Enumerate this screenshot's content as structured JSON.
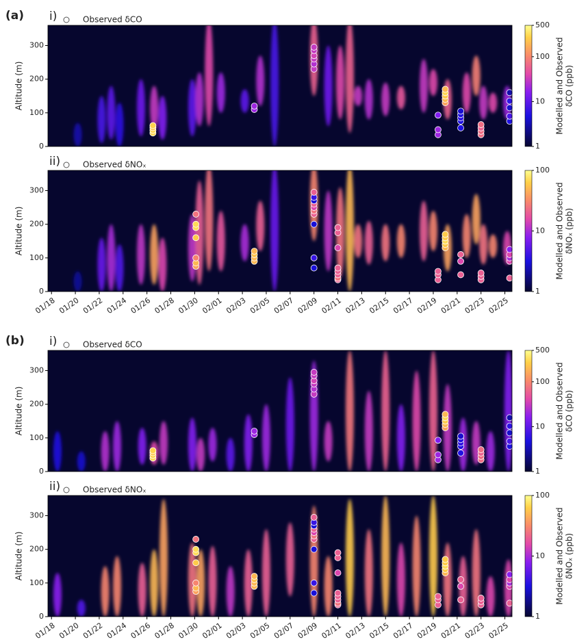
{
  "chart_data": [
    {
      "type": "heatmap",
      "panel_label": "(a)",
      "subpanel": "i)",
      "ylabel": "Altitude (m)",
      "colorbar_label": [
        "Modelled and Observed",
        "δCO (ppb)"
      ],
      "log": true,
      "clim": [
        1,
        500
      ],
      "cticks": [
        1,
        10,
        100,
        500
      ],
      "xlim": [
        17.7,
        56.6
      ],
      "ylim": [
        0,
        360
      ],
      "yticks": [
        0,
        100,
        200,
        300
      ],
      "model": {
        "x": [
          20.2,
          22.2,
          23.0,
          23.7,
          25.5,
          26.6,
          27.3,
          29.8,
          30.4,
          31.2,
          32.2,
          34.2,
          35.5,
          36.7,
          40,
          41.2,
          42.2,
          43,
          43.7,
          44.6,
          46.0,
          47.3,
          49.2,
          50.0,
          51.2,
          52.8,
          53.6,
          54.2,
          55.0,
          56.2
        ],
        "base": [
          0,
          10,
          20,
          0,
          30,
          50,
          20,
          30,
          60,
          60,
          100,
          100,
          120,
          0,
          150,
          60,
          80,
          40,
          120,
          80,
          90,
          110,
          100,
          150,
          80,
          100,
          150,
          80,
          100,
          80
        ],
        "top": [
          70,
          150,
          180,
          130,
          200,
          180,
          150,
          200,
          220,
          380,
          220,
          170,
          270,
          380,
          380,
          300,
          300,
          380,
          180,
          200,
          190,
          180,
          260,
          230,
          200,
          220,
          270,
          180,
          160,
          180
        ],
        "values": [
          3,
          8,
          10,
          6,
          12,
          30,
          15,
          10,
          25,
          40,
          20,
          10,
          25,
          8,
          60,
          12,
          40,
          60,
          30,
          25,
          30,
          50,
          30,
          40,
          60,
          40,
          90,
          30,
          40,
          20
        ]
      },
      "observations": {
        "name": "Observed δCO",
        "x": [
          26.5,
          26.5,
          26.5,
          26.5,
          35,
          35,
          40,
          40,
          40,
          40,
          40,
          40,
          50.4,
          50.4,
          50.4,
          51,
          51,
          51,
          51,
          51,
          52.3,
          52.3,
          52.3,
          52.3,
          52.3,
          54,
          54,
          54,
          54,
          56.4,
          56.4,
          56.4,
          56.4,
          56.4
        ],
        "y": [
          40,
          48,
          56,
          62,
          110,
          120,
          230,
          245,
          260,
          270,
          285,
          295,
          35,
          50,
          93,
          130,
          140,
          150,
          160,
          170,
          55,
          75,
          85,
          95,
          105,
          35,
          45,
          55,
          65,
          75,
          90,
          115,
          135,
          160
        ],
        "values": [
          300,
          300,
          250,
          280,
          20,
          20,
          30,
          25,
          30,
          35,
          30,
          30,
          20,
          20,
          15,
          150,
          200,
          250,
          300,
          200,
          5,
          5,
          6,
          5,
          4,
          70,
          70,
          60,
          70,
          5,
          8,
          4,
          6,
          3
        ]
      }
    },
    {
      "type": "heatmap",
      "subpanel": "ii)",
      "ylabel": "Altitude (m)",
      "colorbar_label": [
        "Modelled and Observed",
        "δNOₓ (ppb)"
      ],
      "log": true,
      "clim": [
        1,
        100
      ],
      "cticks": [
        1,
        10,
        100
      ],
      "xlim": [
        17.7,
        56.6
      ],
      "ylim": [
        0,
        360
      ],
      "yticks": [
        0,
        100,
        200,
        300
      ],
      "xticks": [
        {
          "value": 18,
          "label": "01/18"
        },
        {
          "value": 20,
          "label": "01/20"
        },
        {
          "value": 22,
          "label": "01/22"
        },
        {
          "value": 24,
          "label": "01/24"
        },
        {
          "value": 26,
          "label": "01/26"
        },
        {
          "value": 28,
          "label": "01/28"
        },
        {
          "value": 30,
          "label": "01/30"
        },
        {
          "value": 32,
          "label": "02/01"
        },
        {
          "value": 34,
          "label": "02/03"
        },
        {
          "value": 36,
          "label": "02/05"
        },
        {
          "value": 38,
          "label": "02/07"
        },
        {
          "value": 40,
          "label": "02/09"
        },
        {
          "value": 42,
          "label": "02/11"
        },
        {
          "value": 44,
          "label": "02/13"
        },
        {
          "value": 46,
          "label": "02/15"
        },
        {
          "value": 48,
          "label": "02/17"
        },
        {
          "value": 50,
          "label": "02/19"
        },
        {
          "value": 52,
          "label": "02/21"
        },
        {
          "value": 54,
          "label": "02/23"
        },
        {
          "value": 56,
          "label": "02/25"
        }
      ],
      "model": {
        "x": [
          20.2,
          22.2,
          23.0,
          23.7,
          25.5,
          26.6,
          27.3,
          29.8,
          30.4,
          31.2,
          32.2,
          34.2,
          35.5,
          36.7,
          40,
          41.2,
          42.2,
          43,
          43.7,
          44.6,
          46.0,
          47.3,
          49.2,
          50.0,
          51.2,
          52.8,
          53.6,
          54.2,
          55.0,
          56.2
        ],
        "base": [
          0,
          0,
          0,
          0,
          20,
          20,
          0,
          30,
          20,
          60,
          60,
          90,
          120,
          0,
          150,
          60,
          40,
          0,
          100,
          80,
          90,
          100,
          90,
          120,
          60,
          100,
          140,
          80,
          100,
          80
        ],
        "top": [
          60,
          160,
          200,
          140,
          200,
          200,
          160,
          230,
          330,
          380,
          240,
          200,
          270,
          380,
          380,
          300,
          310,
          380,
          200,
          210,
          200,
          200,
          270,
          240,
          200,
          230,
          290,
          200,
          170,
          180
        ],
        "values": [
          2,
          6,
          10,
          5,
          12,
          40,
          15,
          12,
          20,
          25,
          18,
          10,
          20,
          6,
          30,
          12,
          25,
          50,
          25,
          20,
          25,
          30,
          20,
          30,
          40,
          30,
          40,
          25,
          30,
          15
        ]
      },
      "observations": {
        "name": "Observed δNOₓ",
        "x": [
          30.1,
          30.1,
          30.1,
          30.1,
          30.1,
          30.1,
          30.1,
          35,
          35,
          35,
          35,
          40,
          40,
          40,
          40,
          40,
          40,
          40,
          40,
          40,
          40,
          42,
          42,
          42,
          42,
          42,
          42,
          42,
          42,
          50.4,
          50.4,
          50.4,
          51,
          51,
          51,
          51,
          51,
          52.3,
          52.3,
          52.3,
          54,
          54,
          54,
          56.4,
          56.4,
          56.4,
          56.4,
          56.4
        ],
        "y": [
          75,
          85,
          100,
          160,
          190,
          200,
          230,
          90,
          100,
          110,
          120,
          70,
          100,
          200,
          230,
          240,
          250,
          260,
          270,
          280,
          295,
          35,
          40,
          50,
          60,
          70,
          130,
          175,
          190,
          35,
          50,
          60,
          130,
          140,
          150,
          160,
          170,
          50,
          90,
          110,
          35,
          45,
          55,
          40,
          90,
          100,
          110,
          125
        ],
        "values": [
          40,
          50,
          30,
          60,
          70,
          70,
          25,
          50,
          50,
          55,
          50,
          3,
          4,
          3,
          20,
          25,
          15,
          20,
          3,
          4,
          20,
          20,
          25,
          20,
          20,
          20,
          15,
          20,
          20,
          20,
          20,
          20,
          50,
          60,
          70,
          60,
          60,
          20,
          15,
          20,
          20,
          20,
          20,
          20,
          15,
          10,
          15,
          8
        ]
      }
    },
    {
      "type": "heatmap",
      "panel_label": "(b)",
      "subpanel": "i)",
      "ylabel": "Altitude (m)",
      "colorbar_label": [
        "Modelled and Observed",
        "δCO (ppb)"
      ],
      "log": true,
      "clim": [
        1,
        500
      ],
      "cticks": [
        1,
        10,
        100,
        500
      ],
      "xlim": [
        17.7,
        56.6
      ],
      "ylim": [
        0,
        360
      ],
      "yticks": [
        0,
        100,
        200,
        300
      ],
      "model": {
        "x": [
          18.5,
          20.5,
          22.5,
          23.5,
          25.6,
          26.6,
          27.4,
          29.8,
          30.5,
          31.5,
          33,
          34.5,
          36,
          38,
          40,
          41.2,
          43,
          44.6,
          46,
          47.3,
          48.6,
          50,
          51.2,
          52.5,
          53.6,
          54.8,
          56.3
        ],
        "base": [
          0,
          0,
          0,
          0,
          20,
          20,
          20,
          0,
          0,
          30,
          0,
          0,
          0,
          0,
          0,
          30,
          0,
          0,
          0,
          0,
          0,
          0,
          0,
          0,
          20,
          0,
          0
        ],
        "top": [
          120,
          60,
          120,
          150,
          130,
          90,
          150,
          160,
          100,
          130,
          100,
          170,
          200,
          280,
          330,
          150,
          360,
          240,
          360,
          200,
          300,
          360,
          260,
          160,
          150,
          120,
          360
        ],
        "values": [
          5,
          4,
          25,
          20,
          15,
          40,
          30,
          15,
          30,
          20,
          10,
          15,
          20,
          12,
          20,
          30,
          80,
          30,
          60,
          15,
          40,
          60,
          30,
          20,
          30,
          20,
          15
        ]
      },
      "observations": {
        "name": "Observed δCO",
        "x": [
          26.5,
          26.5,
          26.5,
          26.5,
          35,
          35,
          40,
          40,
          40,
          40,
          40,
          40,
          50.4,
          50.4,
          50.4,
          51,
          51,
          51,
          51,
          51,
          52.3,
          52.3,
          52.3,
          52.3,
          52.3,
          54,
          54,
          54,
          54,
          56.4,
          56.4,
          56.4,
          56.4,
          56.4
        ],
        "y": [
          40,
          48,
          56,
          62,
          110,
          120,
          230,
          245,
          260,
          270,
          285,
          295,
          35,
          50,
          93,
          130,
          140,
          150,
          160,
          170,
          55,
          75,
          85,
          95,
          105,
          35,
          45,
          55,
          65,
          75,
          90,
          115,
          135,
          160
        ],
        "values": [
          300,
          300,
          250,
          280,
          20,
          20,
          30,
          25,
          30,
          35,
          30,
          30,
          20,
          20,
          15,
          150,
          200,
          250,
          300,
          200,
          5,
          5,
          6,
          5,
          4,
          70,
          70,
          60,
          70,
          5,
          8,
          4,
          6,
          3
        ]
      }
    },
    {
      "type": "heatmap",
      "subpanel": "ii)",
      "ylabel": "Altitude (m)",
      "colorbar_label": [
        "Modelled and Observed",
        "δNOₓ (ppb)"
      ],
      "log": true,
      "clim": [
        1,
        100
      ],
      "cticks": [
        1,
        10,
        100
      ],
      "xlim": [
        17.7,
        56.6
      ],
      "ylim": [
        0,
        360
      ],
      "yticks": [
        0,
        100,
        200,
        300
      ],
      "xticks": [
        {
          "value": 18,
          "label": "01/18"
        },
        {
          "value": 20,
          "label": "01/20"
        },
        {
          "value": 22,
          "label": "01/22"
        },
        {
          "value": 24,
          "label": "01/24"
        },
        {
          "value": 26,
          "label": "01/26"
        },
        {
          "value": 28,
          "label": "01/28"
        },
        {
          "value": 30,
          "label": "01/30"
        },
        {
          "value": 32,
          "label": "02/01"
        },
        {
          "value": 34,
          "label": "02/03"
        },
        {
          "value": 36,
          "label": "02/05"
        },
        {
          "value": 38,
          "label": "02/07"
        },
        {
          "value": 40,
          "label": "02/09"
        },
        {
          "value": 42,
          "label": "02/11"
        },
        {
          "value": 44,
          "label": "02/13"
        },
        {
          "value": 46,
          "label": "02/15"
        },
        {
          "value": 48,
          "label": "02/17"
        },
        {
          "value": 50,
          "label": "02/19"
        },
        {
          "value": 52,
          "label": "02/21"
        },
        {
          "value": 54,
          "label": "02/23"
        },
        {
          "value": 56,
          "label": "02/25"
        }
      ],
      "model": {
        "x": [
          18.5,
          20.5,
          22.5,
          23.5,
          25.6,
          26.6,
          27.4,
          29.8,
          30.5,
          31.5,
          33,
          34.5,
          36,
          38,
          40,
          41.2,
          43,
          44.6,
          46,
          47.3,
          48.6,
          50,
          51.2,
          52.5,
          53.6,
          54.8,
          56.3
        ],
        "base": [
          0,
          0,
          0,
          0,
          0,
          0,
          0,
          0,
          0,
          0,
          0,
          0,
          0,
          60,
          0,
          0,
          0,
          0,
          0,
          0,
          0,
          0,
          0,
          0,
          0,
          0,
          0
        ],
        "top": [
          130,
          50,
          150,
          180,
          160,
          200,
          350,
          220,
          200,
          210,
          150,
          200,
          260,
          280,
          330,
          180,
          350,
          260,
          360,
          220,
          300,
          360,
          220,
          180,
          260,
          120,
          170
        ],
        "values": [
          8,
          5,
          30,
          30,
          20,
          50,
          40,
          25,
          40,
          20,
          12,
          20,
          20,
          20,
          30,
          30,
          60,
          25,
          50,
          15,
          30,
          60,
          25,
          20,
          25,
          15,
          15
        ]
      },
      "observations": {
        "name": "Observed δNOₓ",
        "x": [
          30.1,
          30.1,
          30.1,
          30.1,
          30.1,
          30.1,
          30.1,
          35,
          35,
          35,
          35,
          40,
          40,
          40,
          40,
          40,
          40,
          40,
          40,
          40,
          40,
          42,
          42,
          42,
          42,
          42,
          42,
          42,
          42,
          50.4,
          50.4,
          50.4,
          51,
          51,
          51,
          51,
          51,
          52.3,
          52.3,
          52.3,
          54,
          54,
          54,
          56.4,
          56.4,
          56.4,
          56.4,
          56.4
        ],
        "y": [
          75,
          85,
          100,
          160,
          190,
          200,
          230,
          90,
          100,
          110,
          120,
          70,
          100,
          200,
          230,
          240,
          250,
          260,
          270,
          280,
          295,
          35,
          40,
          50,
          60,
          70,
          130,
          175,
          190,
          35,
          50,
          60,
          130,
          140,
          150,
          160,
          170,
          50,
          90,
          110,
          35,
          45,
          55,
          40,
          90,
          100,
          110,
          125
        ],
        "values": [
          40,
          50,
          30,
          60,
          70,
          70,
          25,
          50,
          50,
          55,
          50,
          3,
          4,
          3,
          20,
          25,
          15,
          20,
          3,
          4,
          20,
          20,
          25,
          20,
          20,
          20,
          15,
          20,
          20,
          20,
          20,
          20,
          50,
          60,
          70,
          60,
          60,
          20,
          15,
          20,
          20,
          20,
          20,
          20,
          15,
          10,
          15,
          8
        ]
      }
    }
  ]
}
